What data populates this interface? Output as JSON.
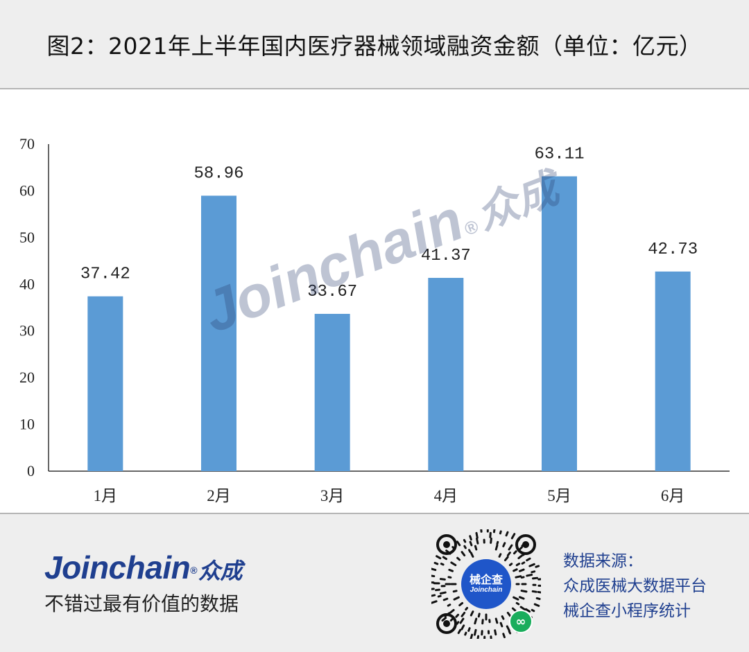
{
  "header": {
    "title": "图2：2021年上半年国内医疗器械领域融资金额（单位：亿元）"
  },
  "chart_data": {
    "type": "bar",
    "title": "图2：2021年上半年国内医疗器械领域融资金额（单位：亿元）",
    "categories": [
      "1月",
      "2月",
      "3月",
      "4月",
      "5月",
      "6月"
    ],
    "values": [
      37.42,
      58.96,
      33.67,
      41.37,
      63.11,
      42.73
    ],
    "data_labels": [
      "37.42",
      "58.96",
      "33.67",
      "41.37",
      "63.11",
      "42.73"
    ],
    "ylim": [
      0,
      70
    ],
    "yticks": [
      0,
      10,
      20,
      30,
      40,
      50,
      60,
      70
    ],
    "xlabel": "",
    "ylabel": "",
    "grid": false,
    "bar_color": "#5b9bd5"
  },
  "watermark": {
    "text": "Joinchain",
    "reg": "®",
    "text_cn": "众成"
  },
  "footer": {
    "brand": "Joinchain",
    "brand_reg": "®",
    "brand_cn": "众成",
    "slogan": "不错过最有价值的数据",
    "qr": {
      "center_line1": "械企查",
      "center_line2": "Joinchain",
      "badge_icon": "mini-program-icon"
    },
    "source_lines": [
      "数据来源：",
      "众成医械大数据平台",
      "械企查小程序统计"
    ]
  },
  "colors": {
    "brand_blue": "#1f3f8f",
    "bar_blue": "#5b9bd5",
    "qr_blue": "#1f56c9",
    "badge_green": "#1aad5c",
    "panel_gray": "#eeeeee"
  }
}
